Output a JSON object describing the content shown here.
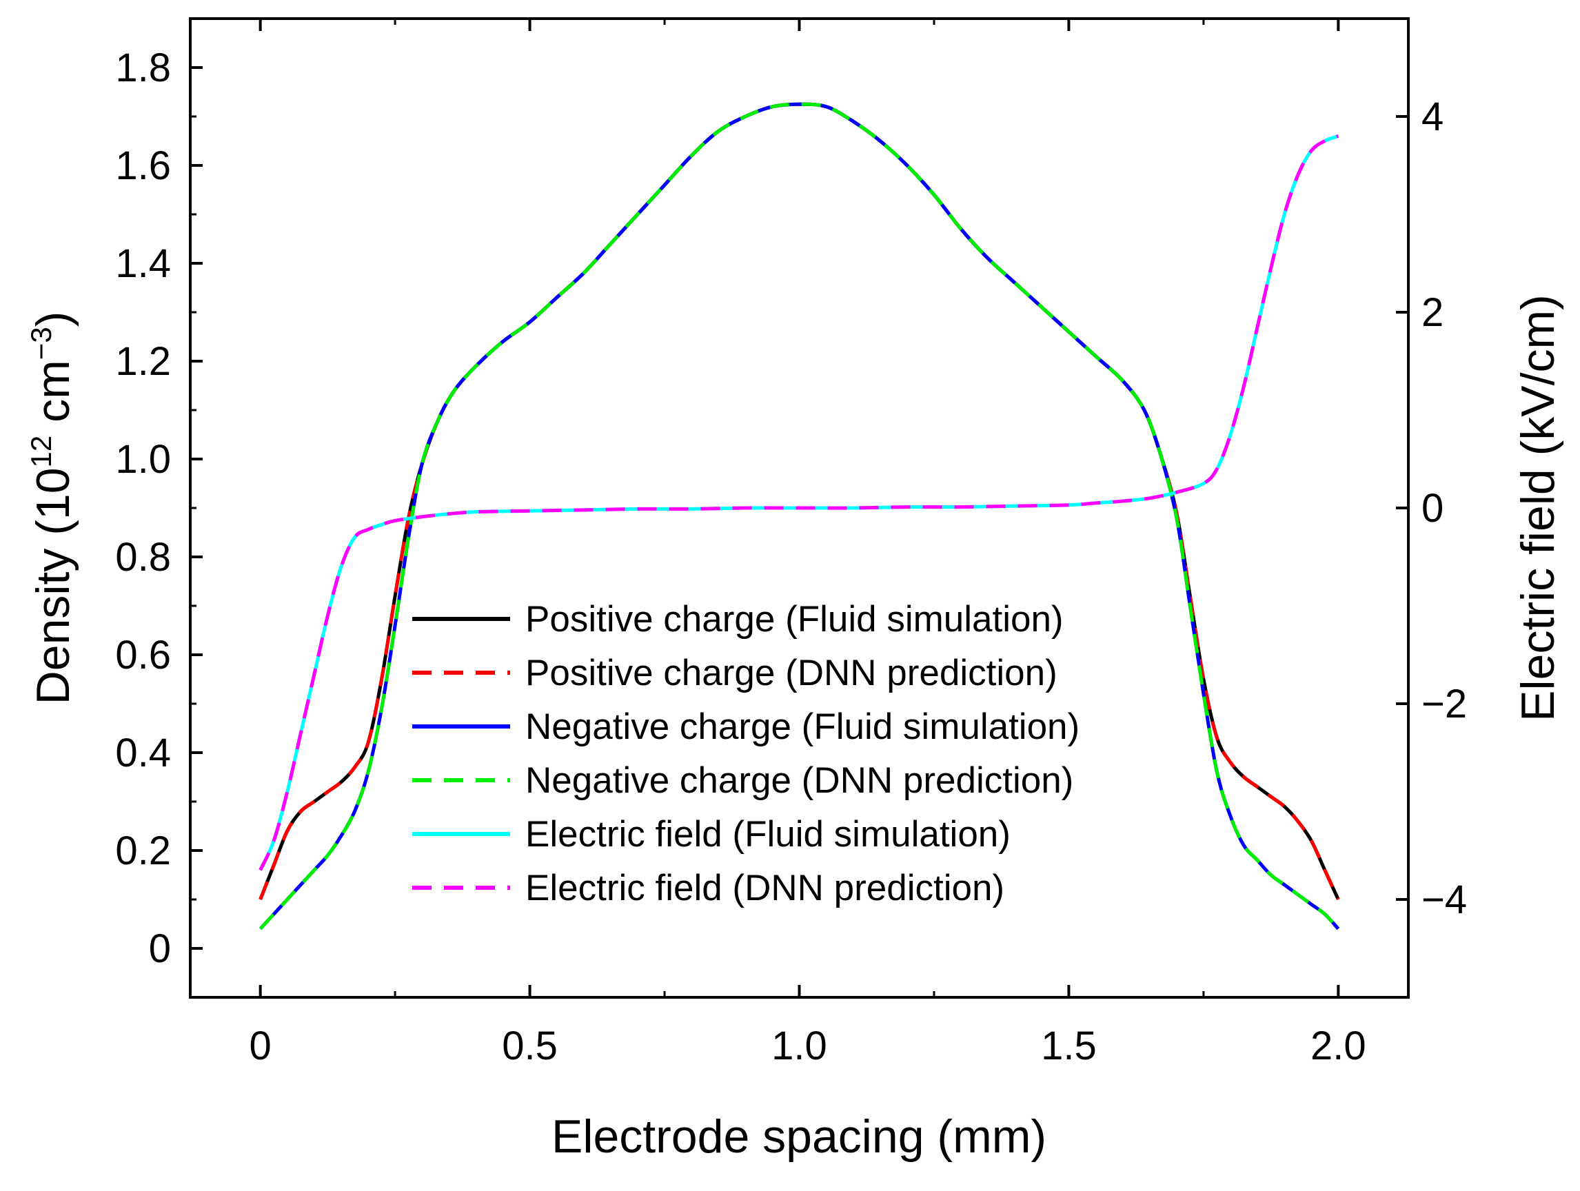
{
  "chart_data": {
    "type": "line",
    "xlabel": "Electrode spacing (mm)",
    "ylabel_left": {
      "base": "Density (10",
      "exp1": "12",
      "unit": " cm",
      "exp2": "−3",
      "close": ")"
    },
    "ylabel_right": "Electric field (kV/cm)",
    "xlim": [
      -0.13,
      2.13
    ],
    "ylim_left": [
      -0.1,
      1.9
    ],
    "ylim_right": [
      -5,
      5
    ],
    "x_ticks": [
      {
        "value": 0,
        "label": "0"
      },
      {
        "value": 0.5,
        "label": "0.5"
      },
      {
        "value": 1.0,
        "label": "1.0"
      },
      {
        "value": 1.5,
        "label": "1.5"
      },
      {
        "value": 2.0,
        "label": "2.0"
      }
    ],
    "y_left_ticks": [
      {
        "value": 0,
        "label": "0"
      },
      {
        "value": 0.2,
        "label": "0.2"
      },
      {
        "value": 0.4,
        "label": "0.4"
      },
      {
        "value": 0.6,
        "label": "0.6"
      },
      {
        "value": 0.8,
        "label": "0.8"
      },
      {
        "value": 1.0,
        "label": "1.0"
      },
      {
        "value": 1.2,
        "label": "1.2"
      },
      {
        "value": 1.4,
        "label": "1.4"
      },
      {
        "value": 1.6,
        "label": "1.6"
      },
      {
        "value": 1.8,
        "label": "1.8"
      }
    ],
    "y_right_ticks": [
      {
        "value": -4,
        "label": "−4"
      },
      {
        "value": -2,
        "label": "−2"
      },
      {
        "value": 0,
        "label": "0"
      },
      {
        "value": 2,
        "label": "2"
      },
      {
        "value": 4,
        "label": "4"
      }
    ],
    "series": [
      {
        "name": "Positive charge (Fluid simulation)",
        "axis": "left",
        "color": "#000000",
        "dash": "solid",
        "width": 5,
        "x": [
          0.0,
          0.025,
          0.05,
          0.075,
          0.1,
          0.125,
          0.15,
          0.175,
          0.2,
          0.225,
          0.25,
          0.275,
          0.3,
          0.33,
          0.36,
          0.4,
          0.45,
          0.5,
          0.55,
          0.6,
          0.65,
          0.7,
          0.75,
          0.8,
          0.85,
          0.9,
          0.95,
          1.0,
          1.05,
          1.1,
          1.15,
          1.2,
          1.25,
          1.3,
          1.35,
          1.4,
          1.45,
          1.5,
          1.55,
          1.6,
          1.64,
          1.67,
          1.7,
          1.725,
          1.75,
          1.775,
          1.8,
          1.825,
          1.85,
          1.875,
          1.9,
          1.925,
          1.95,
          1.975,
          2.0
        ],
        "y": [
          0.1,
          0.17,
          0.24,
          0.28,
          0.3,
          0.32,
          0.34,
          0.37,
          0.42,
          0.55,
          0.72,
          0.88,
          0.99,
          1.08,
          1.14,
          1.19,
          1.24,
          1.28,
          1.33,
          1.38,
          1.44,
          1.5,
          1.56,
          1.62,
          1.67,
          1.7,
          1.72,
          1.725,
          1.72,
          1.69,
          1.65,
          1.6,
          1.54,
          1.47,
          1.41,
          1.36,
          1.31,
          1.26,
          1.21,
          1.16,
          1.1,
          1.01,
          0.89,
          0.72,
          0.55,
          0.43,
          0.38,
          0.35,
          0.33,
          0.31,
          0.29,
          0.26,
          0.22,
          0.16,
          0.1
        ]
      },
      {
        "name": "Positive charge (DNN prediction)",
        "axis": "left",
        "color": "#ff0000",
        "dash": "dashed",
        "width": 5,
        "x": [
          0.0,
          0.025,
          0.05,
          0.075,
          0.1,
          0.125,
          0.15,
          0.175,
          0.2,
          0.225,
          0.25,
          0.275,
          0.3,
          0.33,
          0.36,
          0.4,
          0.45,
          0.5,
          0.55,
          0.6,
          0.65,
          0.7,
          0.75,
          0.8,
          0.85,
          0.9,
          0.95,
          1.0,
          1.05,
          1.1,
          1.15,
          1.2,
          1.25,
          1.3,
          1.35,
          1.4,
          1.45,
          1.5,
          1.55,
          1.6,
          1.64,
          1.67,
          1.7,
          1.725,
          1.75,
          1.775,
          1.8,
          1.825,
          1.85,
          1.875,
          1.9,
          1.925,
          1.95,
          1.975,
          2.0
        ],
        "y": [
          0.1,
          0.17,
          0.24,
          0.28,
          0.3,
          0.32,
          0.34,
          0.37,
          0.42,
          0.55,
          0.72,
          0.88,
          0.99,
          1.08,
          1.14,
          1.19,
          1.24,
          1.28,
          1.33,
          1.38,
          1.44,
          1.5,
          1.56,
          1.62,
          1.67,
          1.7,
          1.72,
          1.725,
          1.72,
          1.69,
          1.65,
          1.6,
          1.54,
          1.47,
          1.41,
          1.36,
          1.31,
          1.26,
          1.21,
          1.16,
          1.1,
          1.01,
          0.89,
          0.72,
          0.55,
          0.43,
          0.38,
          0.35,
          0.33,
          0.31,
          0.29,
          0.26,
          0.22,
          0.16,
          0.1
        ]
      },
      {
        "name": "Negative charge (Fluid simulation)",
        "axis": "left",
        "color": "#0000ff",
        "dash": "solid",
        "width": 5,
        "x": [
          0.0,
          0.025,
          0.05,
          0.075,
          0.1,
          0.125,
          0.15,
          0.175,
          0.2,
          0.225,
          0.25,
          0.275,
          0.3,
          0.33,
          0.36,
          0.4,
          0.45,
          0.5,
          0.55,
          0.6,
          0.65,
          0.7,
          0.75,
          0.8,
          0.85,
          0.9,
          0.95,
          1.0,
          1.05,
          1.1,
          1.15,
          1.2,
          1.25,
          1.3,
          1.35,
          1.4,
          1.45,
          1.5,
          1.55,
          1.6,
          1.64,
          1.67,
          1.7,
          1.725,
          1.75,
          1.775,
          1.8,
          1.825,
          1.85,
          1.875,
          1.9,
          1.925,
          1.95,
          1.975,
          2.0
        ],
        "y": [
          0.04,
          0.07,
          0.1,
          0.13,
          0.16,
          0.19,
          0.23,
          0.28,
          0.36,
          0.49,
          0.66,
          0.84,
          0.99,
          1.08,
          1.14,
          1.19,
          1.24,
          1.28,
          1.33,
          1.38,
          1.44,
          1.5,
          1.56,
          1.62,
          1.67,
          1.7,
          1.72,
          1.725,
          1.72,
          1.69,
          1.65,
          1.6,
          1.54,
          1.47,
          1.41,
          1.36,
          1.31,
          1.26,
          1.21,
          1.16,
          1.1,
          1.01,
          0.88,
          0.7,
          0.52,
          0.36,
          0.27,
          0.21,
          0.18,
          0.15,
          0.13,
          0.11,
          0.09,
          0.07,
          0.04
        ]
      },
      {
        "name": "Negative charge (DNN prediction)",
        "axis": "left",
        "color": "#00ee00",
        "dash": "dashed",
        "width": 5,
        "x": [
          0.0,
          0.025,
          0.05,
          0.075,
          0.1,
          0.125,
          0.15,
          0.175,
          0.2,
          0.225,
          0.25,
          0.275,
          0.3,
          0.33,
          0.36,
          0.4,
          0.45,
          0.5,
          0.55,
          0.6,
          0.65,
          0.7,
          0.75,
          0.8,
          0.85,
          0.9,
          0.95,
          1.0,
          1.05,
          1.1,
          1.15,
          1.2,
          1.25,
          1.3,
          1.35,
          1.4,
          1.45,
          1.5,
          1.55,
          1.6,
          1.64,
          1.67,
          1.7,
          1.725,
          1.75,
          1.775,
          1.8,
          1.825,
          1.85,
          1.875,
          1.9,
          1.925,
          1.95,
          1.975,
          2.0
        ],
        "y": [
          0.04,
          0.07,
          0.1,
          0.13,
          0.16,
          0.19,
          0.23,
          0.28,
          0.36,
          0.49,
          0.66,
          0.84,
          0.99,
          1.08,
          1.14,
          1.19,
          1.24,
          1.28,
          1.33,
          1.38,
          1.44,
          1.5,
          1.56,
          1.62,
          1.67,
          1.7,
          1.72,
          1.725,
          1.72,
          1.69,
          1.65,
          1.6,
          1.54,
          1.47,
          1.41,
          1.36,
          1.31,
          1.26,
          1.21,
          1.16,
          1.1,
          1.01,
          0.88,
          0.7,
          0.52,
          0.36,
          0.27,
          0.21,
          0.18,
          0.15,
          0.13,
          0.11,
          0.09,
          0.07,
          0.04
        ]
      },
      {
        "name": "Electric field (Fluid simulation)",
        "axis": "right",
        "color": "#00ffff",
        "dash": "solid",
        "width": 5,
        "x": [
          0.0,
          0.025,
          0.05,
          0.075,
          0.1,
          0.125,
          0.15,
          0.175,
          0.2,
          0.225,
          0.25,
          0.3,
          0.35,
          0.4,
          0.5,
          0.6,
          0.7,
          0.8,
          0.9,
          1.0,
          1.1,
          1.2,
          1.3,
          1.4,
          1.5,
          1.55,
          1.6,
          1.65,
          1.7,
          1.75,
          1.775,
          1.8,
          1.825,
          1.85,
          1.875,
          1.9,
          1.925,
          1.95,
          1.975,
          2.0
        ],
        "y": [
          -3.7,
          -3.4,
          -2.9,
          -2.3,
          -1.7,
          -1.1,
          -0.6,
          -0.3,
          -0.22,
          -0.17,
          -0.13,
          -0.09,
          -0.06,
          -0.04,
          -0.03,
          -0.02,
          -0.01,
          -0.01,
          0.0,
          0.0,
          0.0,
          0.01,
          0.01,
          0.02,
          0.03,
          0.05,
          0.07,
          0.1,
          0.16,
          0.25,
          0.4,
          0.75,
          1.25,
          1.85,
          2.45,
          3.0,
          3.4,
          3.65,
          3.75,
          3.8
        ]
      },
      {
        "name": "Electric field (DNN prediction)",
        "axis": "right",
        "color": "#ff00ff",
        "dash": "dashed",
        "width": 5,
        "x": [
          0.0,
          0.025,
          0.05,
          0.075,
          0.1,
          0.125,
          0.15,
          0.175,
          0.2,
          0.225,
          0.25,
          0.3,
          0.35,
          0.4,
          0.5,
          0.6,
          0.7,
          0.8,
          0.9,
          1.0,
          1.1,
          1.2,
          1.3,
          1.4,
          1.5,
          1.55,
          1.6,
          1.65,
          1.7,
          1.75,
          1.775,
          1.8,
          1.825,
          1.85,
          1.875,
          1.9,
          1.925,
          1.95,
          1.975,
          2.0
        ],
        "y": [
          -3.7,
          -3.4,
          -2.9,
          -2.3,
          -1.7,
          -1.1,
          -0.6,
          -0.3,
          -0.22,
          -0.17,
          -0.13,
          -0.09,
          -0.06,
          -0.04,
          -0.03,
          -0.02,
          -0.01,
          -0.01,
          0.0,
          0.0,
          0.0,
          0.01,
          0.01,
          0.02,
          0.03,
          0.05,
          0.07,
          0.1,
          0.16,
          0.25,
          0.4,
          0.75,
          1.25,
          1.85,
          2.45,
          3.0,
          3.4,
          3.65,
          3.75,
          3.8
        ]
      }
    ],
    "legend": {
      "placement": "center-bottom",
      "entries": [
        {
          "label": "Positive charge (Fluid simulation)",
          "color": "#000000",
          "dash": "solid"
        },
        {
          "label": "Positive charge (DNN prediction)",
          "color": "#ff0000",
          "dash": "dashed"
        },
        {
          "label": "Negative charge (Fluid simulation)",
          "color": "#0000ff",
          "dash": "solid"
        },
        {
          "label": "Negative charge (DNN prediction)",
          "color": "#00ee00",
          "dash": "dashed"
        },
        {
          "label": "Electric field (Fluid simulation)",
          "color": "#00ffff",
          "dash": "solid"
        },
        {
          "label": "Electric field (DNN prediction)",
          "color": "#ff00ff",
          "dash": "dashed"
        }
      ]
    }
  }
}
